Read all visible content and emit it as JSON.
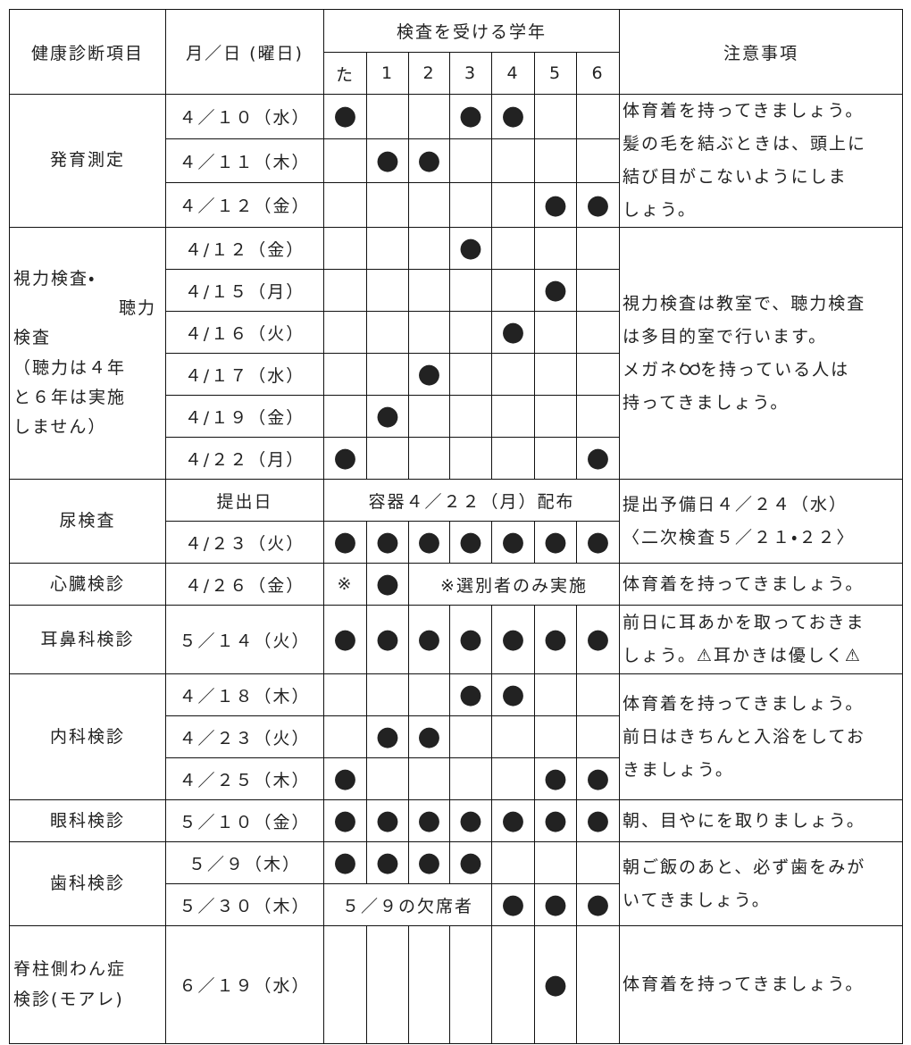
{
  "header": {
    "item": "健康診断項目",
    "date": "月／日 (曜日)",
    "grades_title": "検査を受ける学年",
    "grades": [
      "た",
      "1",
      "2",
      "3",
      "4",
      "5",
      "6"
    ],
    "notes": "注意事項"
  },
  "groups": [
    {
      "item": [
        "発育測定"
      ],
      "rows": [
        {
          "date": "４／１０（水）",
          "cells": [
            "●",
            null,
            null,
            "●",
            "●",
            null,
            null
          ]
        },
        {
          "date": "４／１１（木）",
          "cells": [
            null,
            "●",
            "●",
            null,
            null,
            null,
            null
          ]
        },
        {
          "date": "４／１２（金）",
          "cells": [
            null,
            null,
            null,
            null,
            null,
            "●",
            "●"
          ]
        }
      ],
      "note": [
        "体育着を持ってきましょう。",
        "髪の毛を結ぶときは、頭上に",
        "結び目がこないようにしま",
        "しょう。"
      ]
    },
    {
      "item": [
        "視力検査・",
        "聴力",
        "検査",
        "（聴力は４年",
        "と６年は実施",
        "しません）"
      ],
      "rows": [
        {
          "date": "４/１２（金）",
          "cells": [
            null,
            null,
            null,
            "●",
            null,
            null,
            null
          ]
        },
        {
          "date": "４/１５（月）",
          "cells": [
            null,
            null,
            null,
            null,
            null,
            "●",
            null
          ]
        },
        {
          "date": "４/１６（火）",
          "cells": [
            null,
            null,
            null,
            null,
            "●",
            null,
            null
          ]
        },
        {
          "date": "４/１７（水）",
          "cells": [
            null,
            null,
            "●",
            null,
            null,
            null,
            null
          ]
        },
        {
          "date": "４/１９（金）",
          "cells": [
            null,
            "●",
            null,
            null,
            null,
            null,
            null
          ]
        },
        {
          "date": "４/２２（月）",
          "cells": [
            "●",
            null,
            null,
            null,
            null,
            null,
            "●"
          ]
        }
      ],
      "note": [
        "視力検査は教室で、聴力検査",
        "は多目的室で行います。",
        [
          "メガネ",
          "を持っている人は"
        ],
        "持ってきましょう。"
      ]
    },
    {
      "item": [
        "尿検査"
      ],
      "rows": [
        {
          "date": "提出日",
          "cells": [
            {
              "text": "容器４／２２（月）配布",
              "span": 7
            }
          ]
        },
        {
          "date": "４/２３（火）",
          "cells": [
            "●",
            "●",
            "●",
            "●",
            "●",
            "●",
            "●"
          ]
        }
      ],
      "note": [
        "提出予備日４／２４（水）",
        "〈二次検査５／２１・２２〉"
      ]
    },
    {
      "item": [
        "心臓検診"
      ],
      "rows": [
        {
          "date": "４/２６（金）",
          "cells": [
            "※",
            "●",
            {
              "text": "※選別者のみ実施",
              "span": 5
            }
          ]
        }
      ],
      "note": [
        "体育着を持ってきましょう。"
      ]
    },
    {
      "item": [
        "耳鼻科検診"
      ],
      "rows": [
        {
          "date": "５／１４（火）",
          "cells": [
            "●",
            "●",
            "●",
            "●",
            "●",
            "●",
            "●"
          ]
        }
      ],
      "note": [
        "前日に耳あかを取っておきま",
        "しょう。⚠耳かきは優しく⚠"
      ]
    },
    {
      "item": [
        "内科検診"
      ],
      "rows": [
        {
          "date": "４／１８（木）",
          "cells": [
            null,
            null,
            null,
            "●",
            "●",
            null,
            null
          ]
        },
        {
          "date": "４／２３（火）",
          "cells": [
            null,
            "●",
            "●",
            null,
            null,
            null,
            null
          ]
        },
        {
          "date": "４／２５（木）",
          "cells": [
            "●",
            null,
            null,
            null,
            null,
            "●",
            "●"
          ]
        }
      ],
      "note": [
        "体育着を持ってきましょう。",
        "前日はきちんと入浴をしてお",
        "きましょう。"
      ]
    },
    {
      "item": [
        "眼科検診"
      ],
      "rows": [
        {
          "date": "５／１０（金）",
          "cells": [
            "●",
            "●",
            "●",
            "●",
            "●",
            "●",
            "●"
          ]
        }
      ],
      "note": [
        "朝、目やにを取りましょう。"
      ]
    },
    {
      "item": [
        "歯科検診"
      ],
      "rows": [
        {
          "date": "５／９（木）",
          "cells": [
            "●",
            "●",
            "●",
            "●",
            null,
            null,
            null
          ]
        },
        {
          "date": "５／３０（木）",
          "cells": [
            {
              "text": "５／９の欠席者",
              "span": 4
            },
            "●",
            "●",
            "●"
          ]
        }
      ],
      "note": [
        "朝ご飯のあと、必ず歯をみが",
        "いてきましょう。"
      ]
    },
    {
      "item": [
        "脊柱側わん症",
        "検診(モアレ)"
      ],
      "rows": [
        {
          "date": "６／１９（水）",
          "cells": [
            null,
            null,
            null,
            null,
            null,
            "●",
            null
          ]
        }
      ],
      "note": [
        "体育着を持ってきましょう。"
      ]
    }
  ]
}
